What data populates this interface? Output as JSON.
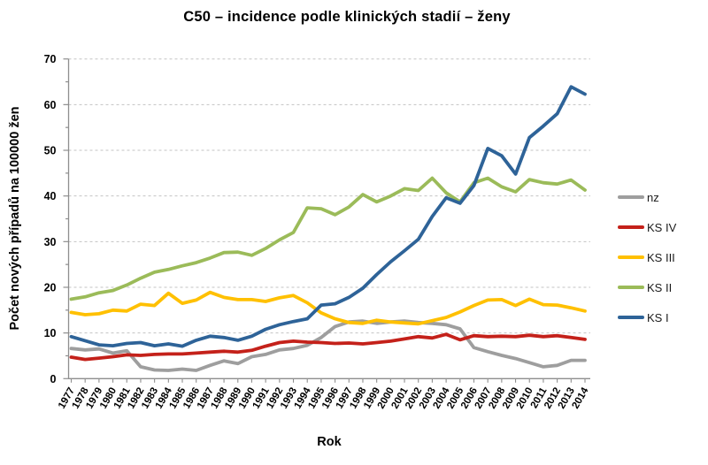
{
  "page": {
    "background": "#FFFFFF"
  },
  "chart_data": {
    "type": "line",
    "title": "C50 – incidence podle klinických stadií – ženy",
    "xlabel": "Rok",
    "ylabel": "Počet nových případů na 100000 žen",
    "ylim": [
      0,
      70
    ],
    "yticks": [
      0,
      10,
      20,
      30,
      40,
      50,
      60,
      70
    ],
    "grid": "horizontal dashed gridlines at every 10",
    "legend_position": "right",
    "x": [
      1977,
      1978,
      1979,
      1980,
      1981,
      1982,
      1983,
      1984,
      1985,
      1986,
      1987,
      1988,
      1989,
      1990,
      1991,
      1992,
      1993,
      1994,
      1995,
      1996,
      1997,
      1998,
      1999,
      2000,
      2001,
      2002,
      2003,
      2004,
      2005,
      2006,
      2007,
      2008,
      2009,
      2010,
      2011,
      2012,
      2013,
      2014
    ],
    "series": [
      {
        "name": "nz",
        "color": "#9E9E9E",
        "values": [
          6.6,
          6.3,
          6.5,
          5.6,
          6.1,
          2.6,
          1.9,
          1.8,
          2.1,
          1.8,
          2.9,
          3.9,
          3.3,
          4.8,
          5.3,
          6.3,
          6.6,
          7.3,
          9.0,
          11.4,
          12.4,
          12.6,
          12.1,
          12.4,
          12.6,
          12.3,
          12.1,
          11.8,
          10.9,
          6.8,
          5.9,
          5.1,
          4.4,
          3.5,
          2.6,
          2.9,
          4.0,
          4.0
        ]
      },
      {
        "name": "KS IV",
        "color": "#C4211A",
        "values": [
          4.7,
          4.2,
          4.5,
          4.8,
          5.2,
          5.1,
          5.3,
          5.4,
          5.4,
          5.6,
          5.8,
          6.0,
          5.8,
          6.2,
          7.1,
          7.9,
          8.2,
          8.0,
          7.9,
          7.7,
          7.8,
          7.6,
          7.9,
          8.2,
          8.7,
          9.2,
          8.9,
          9.7,
          8.5,
          9.4,
          9.2,
          9.3,
          9.2,
          9.5,
          9.2,
          9.4,
          9.0,
          8.6
        ]
      },
      {
        "name": "KS III",
        "color": "#FFC000",
        "values": [
          14.5,
          14.0,
          14.2,
          15.0,
          14.8,
          16.3,
          16.0,
          18.7,
          16.5,
          17.2,
          18.9,
          17.8,
          17.3,
          17.3,
          16.9,
          17.7,
          18.2,
          16.6,
          14.4,
          13.1,
          12.3,
          12.1,
          12.8,
          12.4,
          12.2,
          12.0,
          12.7,
          13.4,
          14.6,
          16.0,
          17.2,
          17.3,
          16.0,
          17.4,
          16.2,
          16.1,
          15.5,
          14.8
        ]
      },
      {
        "name": "KS II",
        "color": "#9BBB59",
        "values": [
          17.4,
          17.9,
          18.8,
          19.3,
          20.5,
          22.0,
          23.3,
          23.9,
          24.7,
          25.4,
          26.4,
          27.6,
          27.7,
          27.0,
          28.5,
          30.4,
          32.0,
          37.4,
          37.2,
          35.9,
          37.6,
          40.3,
          38.7,
          40.0,
          41.6,
          41.2,
          43.9,
          40.7,
          38.7,
          42.9,
          43.9,
          42.0,
          40.9,
          43.6,
          42.9,
          42.6,
          43.5,
          41.3
        ]
      },
      {
        "name": "KS I",
        "color": "#2E6398",
        "values": [
          9.2,
          8.3,
          7.4,
          7.2,
          7.7,
          7.9,
          7.2,
          7.6,
          7.1,
          8.4,
          9.3,
          9.0,
          8.4,
          9.3,
          10.8,
          11.8,
          12.5,
          13.1,
          16.1,
          16.4,
          17.8,
          19.8,
          22.8,
          25.6,
          28.0,
          30.5,
          35.5,
          39.6,
          38.4,
          42.3,
          50.4,
          48.8,
          44.8,
          52.8,
          55.3,
          58.0,
          63.9,
          62.3
        ]
      }
    ],
    "styles": {
      "gridline_color": "#C3C3C3",
      "axis_color": "#8E8E8E",
      "text_color": "#000000",
      "line_width": 3.8
    }
  }
}
